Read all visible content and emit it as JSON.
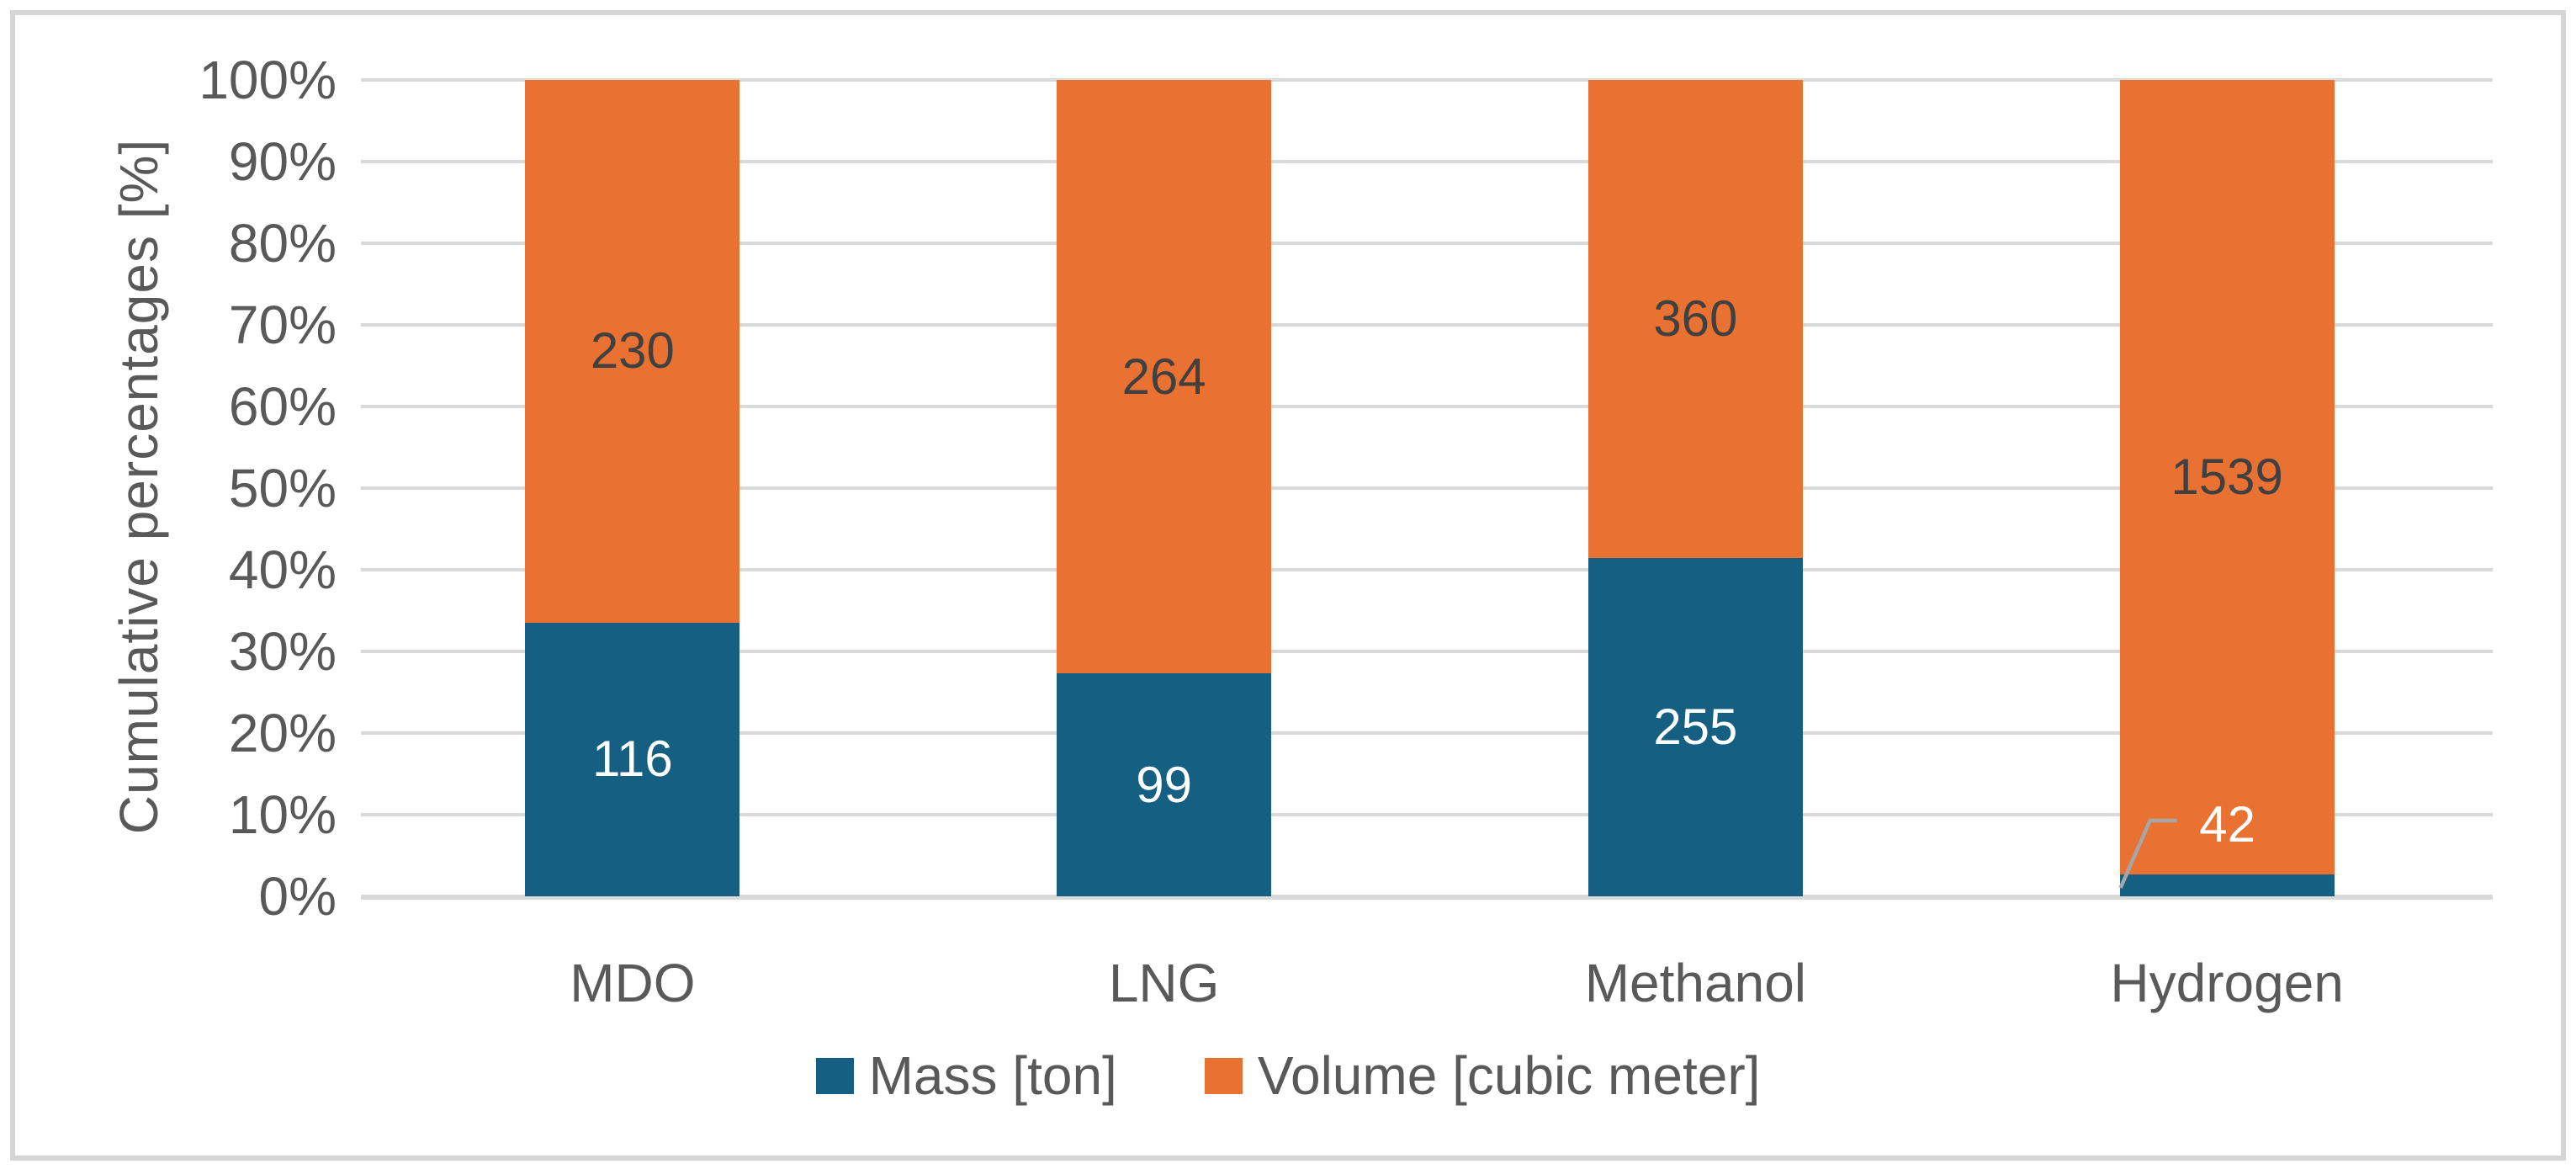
{
  "chart_data": {
    "type": "bar",
    "subtype": "stacked-100-percent",
    "orientation": "vertical",
    "title": "",
    "xlabel": "",
    "ylabel": "Cumulative percentages [%]",
    "categories": [
      "MDO",
      "LNG",
      "Methanol",
      "Hydrogen"
    ],
    "series": [
      {
        "name": "Mass [ton]",
        "color": "#156082",
        "label_color": "#FFFFFF",
        "values": [
          116,
          99,
          255,
          42
        ]
      },
      {
        "name": "Volume [cubic meter]",
        "color": "#E97132",
        "label_color": "#404040",
        "values": [
          230,
          264,
          360,
          1539
        ]
      }
    ],
    "stacked_percentages": {
      "mass_pct": [
        33.5,
        27.3,
        41.5,
        2.7
      ],
      "volume_pct": [
        66.5,
        72.7,
        58.5,
        97.3
      ]
    },
    "y_ticks": [
      "0%",
      "10%",
      "20%",
      "30%",
      "40%",
      "50%",
      "60%",
      "70%",
      "80%",
      "90%",
      "100%"
    ],
    "ylim": [
      0,
      100
    ],
    "grid": true,
    "gridline_color": "#D9D9D9",
    "axis_text_color": "#595959",
    "legend_position": "bottom",
    "annotations": [
      {
        "category": "Hydrogen",
        "series": "Mass [ton]",
        "text": "42",
        "style": "label-moved-outside-segment-with-leader-line",
        "leader_color": "#A6A6A6",
        "text_color": "#FFFFFF"
      }
    ]
  },
  "frame": {
    "border_color": "#D5D5D5",
    "background": "#FFFFFF"
  }
}
